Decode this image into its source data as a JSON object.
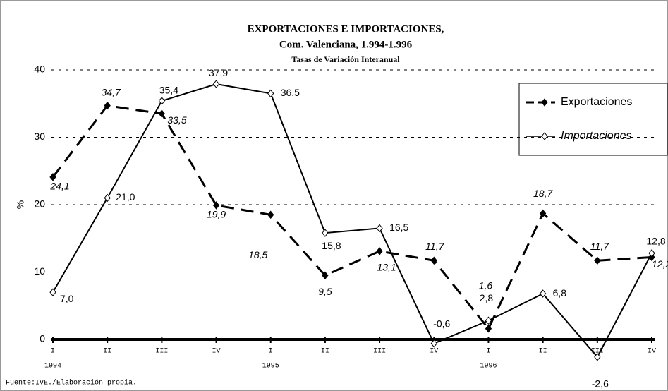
{
  "chart_data": {
    "type": "line",
    "title": "EXPORTACIONES E IMPORTACIONES,",
    "subtitle": "Com. Valenciana, 1.994-1.996",
    "subtitle2": "Tasas de Variación Interanual",
    "y_label": "%",
    "source": "Fuente:IVE./Elaboración propia.",
    "categories": [
      "I",
      "II",
      "III",
      "IV",
      "I",
      "II",
      "III",
      "IV",
      "I",
      "II",
      "III",
      "IV"
    ],
    "groups": [
      {
        "label": "1994",
        "categories": 4
      },
      {
        "label": "1995",
        "categories": 4
      },
      {
        "label": "1996",
        "categories": 4
      }
    ],
    "ylim": [
      0,
      40
    ],
    "yticks": [
      0,
      10,
      20,
      30,
      40
    ],
    "grid": true,
    "legend": "right",
    "series": [
      {
        "name": "Exportaciones",
        "color": "#000000",
        "style": "dashed",
        "values": [
          24.1,
          34.7,
          33.5,
          19.9,
          18.5,
          9.5,
          13.1,
          11.7,
          1.6,
          18.7,
          11.7,
          12.2
        ],
        "value_labels": [
          "24,1",
          "34,7",
          "33,5",
          "19,9",
          "18,5",
          "9,5",
          "13,1",
          "11,7",
          "1,6",
          "18,7",
          "11,7",
          "12,2"
        ]
      },
      {
        "name": "Importaciones",
        "color": "#000000",
        "style": "solid",
        "values": [
          7.0,
          21.0,
          35.4,
          37.9,
          36.5,
          15.8,
          16.5,
          -0.6,
          2.8,
          6.8,
          -2.6,
          12.8
        ],
        "value_labels": [
          "7,0",
          "21,0",
          "35,4",
          "37,9",
          "36,5",
          "15,8",
          "16,5",
          "-0,6",
          "2,8",
          "6,8",
          "-2,6",
          "12,8"
        ]
      }
    ]
  }
}
